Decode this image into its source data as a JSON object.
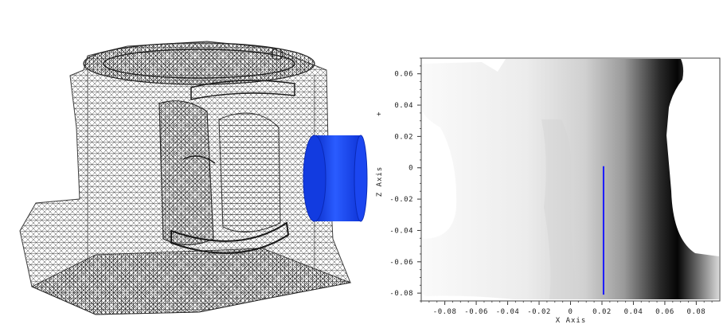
{
  "mesh_view": {
    "description_icon": "wireframe-mesh-icon",
    "cylinder_color": "#1a4cff",
    "mesh_color": "#2a2a2a"
  },
  "plot": {
    "x_axis_label": "X Axis",
    "z_axis_label": "Z Axis",
    "x_ticks": [
      "-0.08",
      "-0.06",
      "-0.04",
      "-0.02",
      "0",
      "0.02",
      "0.04",
      "0.06",
      "0.08"
    ],
    "z_ticks": [
      "0.06",
      "0.04",
      "0.02",
      "0",
      "-0.02",
      "-0.04",
      "-0.06",
      "-0.08"
    ],
    "corner_mark": "+",
    "line_color": "#1a1aff"
  },
  "chart_data": {
    "type": "heatmap",
    "xlabel": "X Axis",
    "ylabel": "Z Axis",
    "xlim": [
      -0.095,
      0.095
    ],
    "ylim": [
      -0.085,
      0.07
    ],
    "x_ticks": [
      -0.08,
      -0.06,
      -0.04,
      -0.02,
      0,
      0.02,
      0.04,
      0.06,
      0.08
    ],
    "z_ticks": [
      0.06,
      0.04,
      0.02,
      0,
      -0.02,
      -0.04,
      -0.06,
      -0.08
    ],
    "line_segment": {
      "x": [
        0.021,
        0.021
      ],
      "z": [
        0.001,
        -0.081
      ]
    }
  }
}
